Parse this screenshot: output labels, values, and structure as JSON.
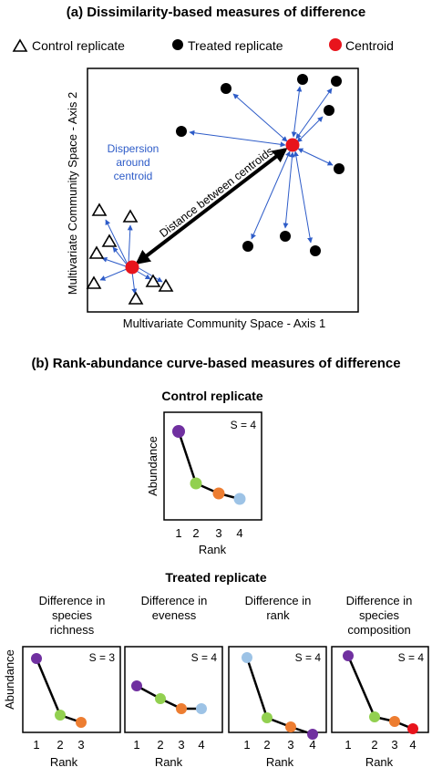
{
  "panel_a": {
    "title": "(a) Dissimilarity-based measures of difference",
    "legend": {
      "control_label": "Control   replicate",
      "treated_label": "Treated   replicate",
      "centroid_label": "Centroid"
    },
    "y_axis_label": "Multivariate Community Space - Axis 2",
    "x_axis_label": "Multivariate Community Space - Axis 1",
    "dispersion_label": [
      "Dispersion",
      "around",
      "centroid"
    ],
    "distance_label": "Distance between centroids",
    "colors": {
      "arrow": "#2E5CC8",
      "centroid": "#E8141C",
      "text_blue": "#2E5CC8"
    }
  },
  "panel_b": {
    "title": "(b) Rank-abundance curve-based measures of difference",
    "control_title": "Control  replicate",
    "treated_title": "Treated replicate",
    "abundance_label": "Abundance",
    "rank_label": "Rank",
    "colors": {
      "purple": "#7030A0",
      "green": "#92D050",
      "orange": "#ED7D31",
      "lightblue": "#9DC3E6",
      "red": "#E8141C"
    },
    "control": {
      "s_label": "S = 4",
      "ticks": [
        "1",
        "2",
        "3",
        "4"
      ]
    },
    "treated": [
      {
        "title": [
          "Difference in",
          "species",
          "richness"
        ],
        "s_label": "S = 3",
        "ticks": [
          "1",
          "2",
          "3"
        ]
      },
      {
        "title": [
          "Difference in",
          "eveness"
        ],
        "s_label": "S = 4",
        "ticks": [
          "1",
          "2",
          "3",
          "4"
        ]
      },
      {
        "title": [
          "Difference in",
          "rank"
        ],
        "s_label": "S = 4",
        "ticks": [
          "1",
          "2",
          "3",
          "4"
        ]
      },
      {
        "title": [
          "Difference in",
          "species",
          "composition"
        ],
        "s_label": "S = 4",
        "ticks": [
          "1",
          "2",
          "3",
          "4"
        ]
      }
    ]
  }
}
